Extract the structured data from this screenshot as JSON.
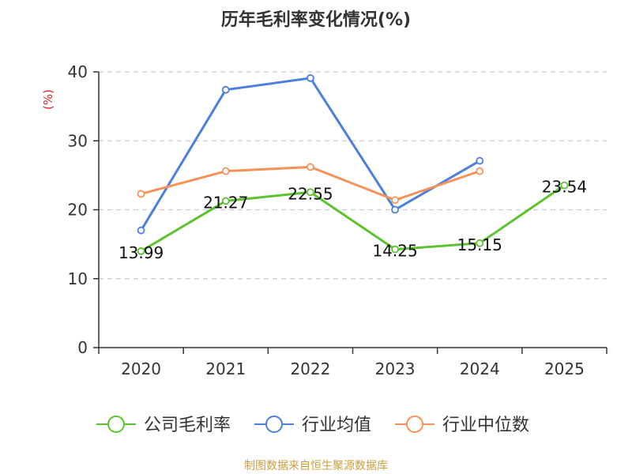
{
  "chart_data": {
    "type": "line",
    "title": "历年毛利率变化情况(%)",
    "ylabel": "(%)",
    "xlabel": "",
    "categories": [
      "2020",
      "2021",
      "2022",
      "2023",
      "2024",
      "2025"
    ],
    "ylim": [
      0,
      40
    ],
    "yticks": [
      0,
      10,
      20,
      30,
      40
    ],
    "grid": true,
    "legend": "bottom",
    "series": [
      {
        "name": "公司毛利率",
        "color": "#5cc22e",
        "values": [
          13.99,
          21.27,
          22.55,
          14.25,
          15.15,
          23.54
        ],
        "labels": [
          "13.99",
          "21.27",
          "22.55",
          "14.25",
          "15.15",
          "23.54"
        ]
      },
      {
        "name": "行业均值",
        "color": "#4a7fdc",
        "values": [
          17.0,
          37.4,
          39.1,
          20.0,
          27.1,
          null
        ]
      },
      {
        "name": "行业中位数",
        "color": "#f5925a",
        "values": [
          22.3,
          25.6,
          26.2,
          21.4,
          25.6,
          null
        ]
      }
    ]
  },
  "footer": {
    "source": "制图数据来自恒生聚源数据库"
  },
  "colors": {
    "title": "#333333",
    "axis": "#333333",
    "grid": "#cccccc",
    "ylabel": "#e02020",
    "source": "#c8a040"
  }
}
